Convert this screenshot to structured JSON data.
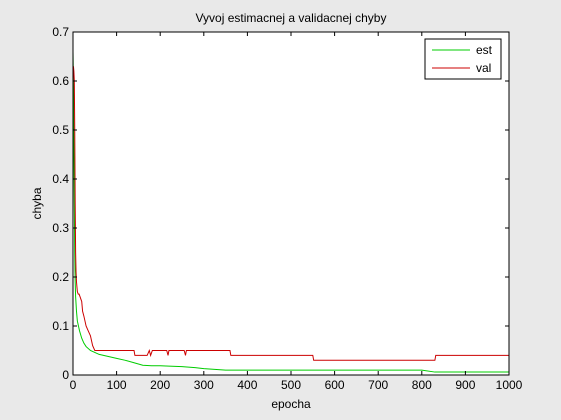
{
  "chart_data": {
    "type": "line",
    "title": "Vyvoj estimacnej a validacnej chyby",
    "xlabel": "epocha",
    "ylabel": "chyba",
    "xlim": [
      0,
      1000
    ],
    "ylim": [
      0,
      0.7
    ],
    "xticks": [
      0,
      100,
      200,
      300,
      400,
      500,
      600,
      700,
      800,
      900,
      1000
    ],
    "xtick_labels": [
      "0",
      "100",
      "200",
      "300",
      "400",
      "500",
      "600",
      "700",
      "800",
      "900",
      "1000"
    ],
    "yticks": [
      0,
      0.1,
      0.2,
      0.3,
      0.4,
      0.5,
      0.6,
      0.7
    ],
    "ytick_labels": [
      "0",
      "0.1",
      "0.2",
      "0.3",
      "0.4",
      "0.5",
      "0.6",
      "0.7"
    ],
    "grid": false,
    "legend_position": "top-right",
    "series": [
      {
        "name": "est",
        "color": "#00cc00",
        "x": [
          0,
          1,
          2,
          3,
          4,
          5,
          6,
          8,
          10,
          15,
          20,
          25,
          30,
          40,
          50,
          60,
          80,
          100,
          120,
          140,
          160,
          180,
          200,
          220,
          250,
          280,
          300,
          350,
          400,
          500,
          600,
          700,
          800,
          830,
          900,
          1000
        ],
        "y": [
          0.66,
          0.6,
          0.48,
          0.35,
          0.25,
          0.19,
          0.16,
          0.13,
          0.11,
          0.09,
          0.075,
          0.065,
          0.058,
          0.05,
          0.046,
          0.042,
          0.038,
          0.034,
          0.03,
          0.025,
          0.02,
          0.019,
          0.019,
          0.018,
          0.017,
          0.015,
          0.013,
          0.01,
          0.01,
          0.01,
          0.01,
          0.01,
          0.01,
          0.006,
          0.006,
          0.006
        ]
      },
      {
        "name": "val",
        "color": "#cc0000",
        "x": [
          0,
          1,
          2,
          3,
          4,
          5,
          6,
          7,
          8,
          9,
          10,
          12,
          14,
          16,
          18,
          20,
          22,
          25,
          30,
          35,
          40,
          45,
          50,
          60,
          80,
          100,
          120,
          140,
          142,
          145,
          170,
          175,
          178,
          182,
          185,
          190,
          215,
          218,
          220,
          222,
          255,
          258,
          260,
          262,
          300,
          360,
          362,
          400,
          500,
          550,
          552,
          600,
          700,
          800,
          830,
          832,
          900,
          1000
        ],
        "y": [
          0.6,
          0.63,
          0.62,
          0.6,
          0.5,
          0.35,
          0.25,
          0.21,
          0.19,
          0.18,
          0.17,
          0.165,
          0.165,
          0.16,
          0.155,
          0.15,
          0.13,
          0.12,
          0.1,
          0.09,
          0.08,
          0.06,
          0.05,
          0.05,
          0.05,
          0.05,
          0.05,
          0.05,
          0.04,
          0.04,
          0.04,
          0.05,
          0.04,
          0.05,
          0.05,
          0.05,
          0.05,
          0.04,
          0.05,
          0.05,
          0.05,
          0.04,
          0.05,
          0.05,
          0.05,
          0.05,
          0.04,
          0.04,
          0.04,
          0.04,
          0.03,
          0.03,
          0.03,
          0.03,
          0.03,
          0.04,
          0.04,
          0.04
        ]
      }
    ]
  }
}
